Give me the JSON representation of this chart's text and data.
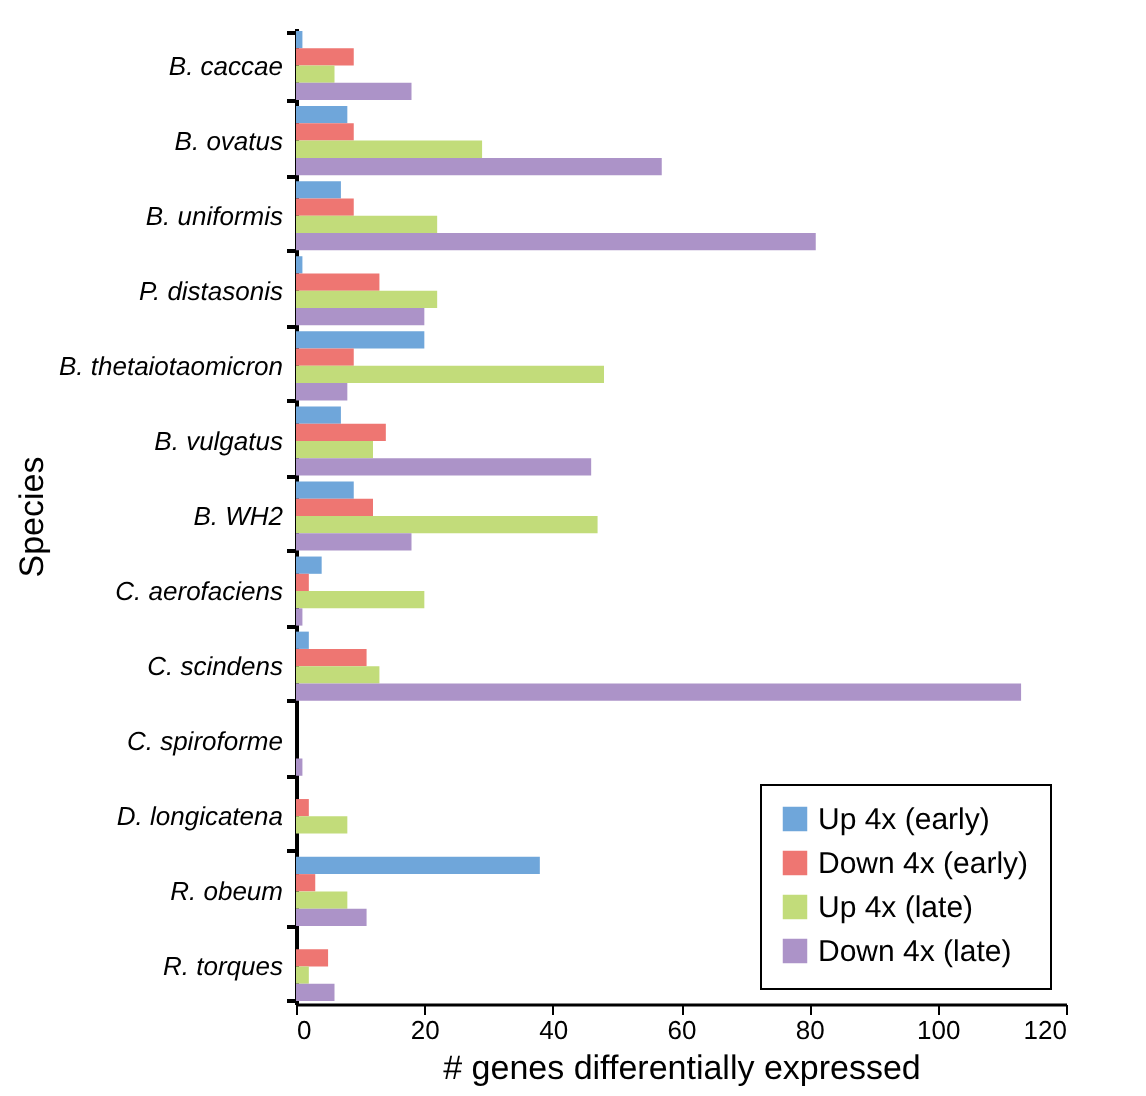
{
  "chart_data": {
    "type": "bar",
    "orientation": "horizontal",
    "xlabel": "# genes differentially expressed",
    "ylabel": "Species",
    "categories": [
      "B. caccae",
      "B. ovatus",
      "B. uniformis",
      "P. distasonis",
      "B. thetaiotaomicron",
      "B. vulgatus",
      "B. WH2",
      "C. aerofaciens",
      "C. scindens",
      "C. spiroforme",
      "D. longicatena",
      "R. obeum",
      "R. torques"
    ],
    "series": [
      {
        "name": "Up 4x (early)",
        "color": "#6fa6da",
        "values": [
          1,
          8,
          7,
          1,
          20,
          7,
          9,
          4,
          2,
          0,
          0,
          38,
          0
        ]
      },
      {
        "name": "Down 4x (early)",
        "color": "#ee7672",
        "values": [
          9,
          9,
          9,
          13,
          9,
          14,
          12,
          2,
          11,
          0,
          2,
          3,
          5
        ]
      },
      {
        "name": "Up 4x (late)",
        "color": "#c2dc7a",
        "values": [
          6,
          29,
          22,
          22,
          48,
          12,
          47,
          20,
          13,
          0,
          8,
          8,
          2
        ]
      },
      {
        "name": "Down 4x (late)",
        "color": "#ac93c8",
        "values": [
          18,
          57,
          81,
          20,
          8,
          46,
          18,
          1,
          113,
          1,
          0,
          11,
          6
        ]
      }
    ],
    "xlim": [
      0,
      120
    ],
    "xticks": [
      0,
      20,
      40,
      60,
      80,
      100,
      120
    ],
    "grid": false,
    "legend": "bottom right"
  }
}
